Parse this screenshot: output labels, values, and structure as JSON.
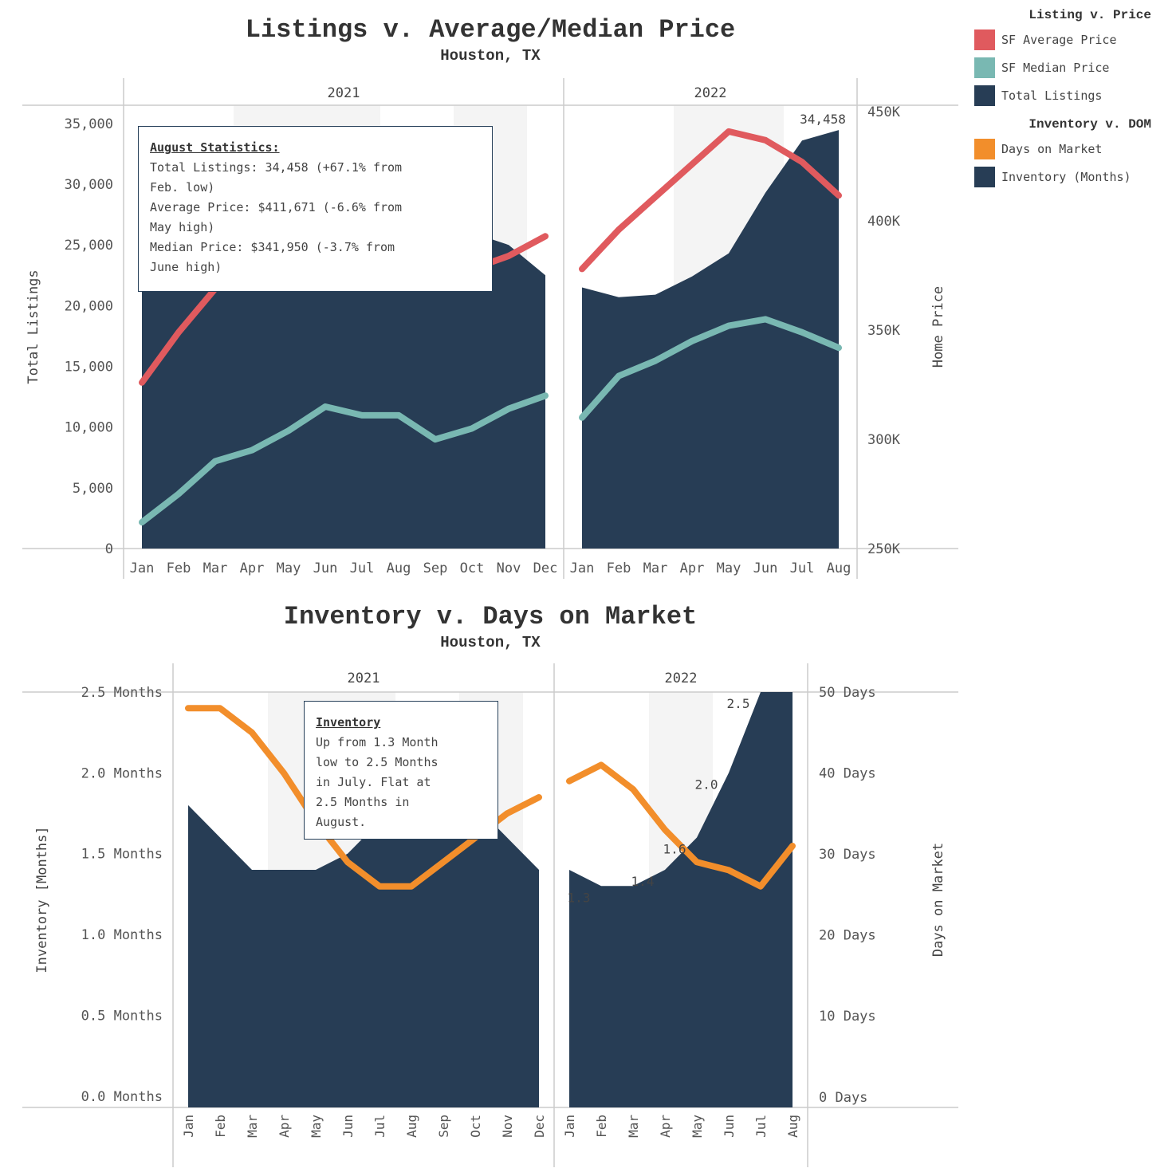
{
  "colors": {
    "avg_price": "#e05a5e",
    "median_price": "#79b8b2",
    "listings": "#273d55",
    "dom": "#f28e2b",
    "shade": "#f4f4f4",
    "axis": "#cccccc"
  },
  "legend": {
    "groups": [
      {
        "title": "Listing v. Price",
        "items": [
          {
            "label": "SF Average Price",
            "color": "#e05a5e"
          },
          {
            "label": "SF Median Price",
            "color": "#79b8b2"
          },
          {
            "label": "Total Listings",
            "color": "#273d55"
          }
        ]
      },
      {
        "title": "Inventory v. DOM",
        "items": [
          {
            "label": "Days on Market",
            "color": "#f28e2b"
          },
          {
            "label": "Inventory (Months)",
            "color": "#273d55"
          }
        ]
      }
    ]
  },
  "annotations": {
    "top": {
      "title": "August Statistics:",
      "lines": [
        "Total Listings: 34,458 (+67.1% from",
        "Feb. low)",
        "Average Price: $411,671 (-6.6% from",
        "May high)",
        "Median Price: $341,950 (-3.7% from",
        "June high)"
      ]
    },
    "bottom": {
      "title": "Inventory",
      "lines": [
        "Up from 1.3 Month",
        "low to 2.5 Months",
        "in July. Flat at",
        "2.5 Months in",
        "August."
      ]
    }
  },
  "chart_data": [
    {
      "type": "area",
      "title": "Listings v. Average/Median Price",
      "subtitle": "Houston, TX",
      "panels": [
        "2021",
        "2022"
      ],
      "categories": [
        [
          "Jan",
          "Feb",
          "Mar",
          "Apr",
          "May",
          "Jun",
          "Jul",
          "Aug",
          "Sep",
          "Oct",
          "Nov",
          "Dec"
        ],
        [
          "Jan",
          "Feb",
          "Mar",
          "Apr",
          "May",
          "Jun",
          "Jul",
          "Aug"
        ]
      ],
      "ylabel": "Total Listings",
      "y2label": "Home Price",
      "ylim": [
        0,
        36500
      ],
      "y2lim": [
        250000,
        453000
      ],
      "yticks": [
        0,
        5000,
        10000,
        15000,
        20000,
        25000,
        30000,
        35000
      ],
      "yticklabels": [
        "0",
        "5,000",
        "10,000",
        "15,000",
        "20,000",
        "25,000",
        "30,000",
        "35,000"
      ],
      "y2ticks": [
        250000,
        300000,
        350000,
        400000,
        450000
      ],
      "y2ticklabels": [
        "250K",
        "300K",
        "350K",
        "400K",
        "450K"
      ],
      "series": [
        {
          "name": "Total Listings",
          "axis": "left",
          "kind": "area",
          "values": [
            [
              22000,
              22100,
              22300,
              22500,
              22700,
              23000,
              23500,
              24000,
              24800,
              26000,
              25000,
              22500
            ],
            [
              21500,
              20700,
              20900,
              22400,
              24300,
              29300,
              33600,
              34458
            ]
          ]
        },
        {
          "name": "SF Average Price",
          "axis": "right",
          "kind": "line",
          "values": [
            [
              326000,
              349000,
              369000,
              378000,
              382000,
              383000,
              380000,
              377000,
              374000,
              378000,
              384000,
              393000
            ],
            [
              378000,
              396000,
              411000,
              426000,
              441000,
              437000,
              427000,
              411671
            ]
          ]
        },
        {
          "name": "SF Median Price",
          "axis": "right",
          "kind": "line",
          "values": [
            [
              262000,
              275000,
              290000,
              295000,
              304000,
              315000,
              311000,
              311000,
              300000,
              305000,
              314000,
              320000
            ],
            [
              310000,
              329000,
              336000,
              345000,
              352000,
              355000,
              349000,
              341950
            ]
          ]
        }
      ],
      "data_labels": [
        {
          "panel": 1,
          "index": 7,
          "text": "34,458"
        }
      ],
      "shaded_columns": [
        [
          3,
          4,
          5,
          6,
          7
        ],
        [
          9,
          10,
          11
        ],
        [
          3,
          4,
          5,
          6
        ]
      ]
    },
    {
      "type": "area",
      "title": "Inventory v. Days on Market",
      "subtitle": "Houston, TX",
      "panels": [
        "2021",
        "2022"
      ],
      "categories": [
        [
          "Jan",
          "Feb",
          "Mar",
          "Apr",
          "May",
          "Jun",
          "Jul",
          "Aug",
          "Sep",
          "Oct",
          "Nov",
          "Dec"
        ],
        [
          "Jan",
          "Feb",
          "Mar",
          "Apr",
          "May",
          "Jun",
          "Jul",
          "Aug"
        ]
      ],
      "ylabel": "Inventory [Months]",
      "y2label": "Days on Market",
      "ylim": [
        -0.07,
        2.5
      ],
      "y2lim": [
        -1.3,
        50
      ],
      "yticks": [
        0,
        0.5,
        1.0,
        1.5,
        2.0,
        2.5
      ],
      "yticklabels": [
        "0.0 Months",
        "0.5 Months",
        "1.0 Months",
        "1.5 Months",
        "2.0 Months",
        "2.5 Months"
      ],
      "y2ticks": [
        0,
        10,
        20,
        30,
        40,
        50
      ],
      "y2ticklabels": [
        "0 Days",
        "10 Days",
        "20 Days",
        "30 Days",
        "40 Days",
        "50 Days"
      ],
      "series": [
        {
          "name": "Inventory (Months)",
          "axis": "left",
          "kind": "area",
          "values": [
            [
              1.8,
              1.6,
              1.4,
              1.4,
              1.4,
              1.5,
              1.7,
              1.8,
              1.9,
              1.8,
              1.6,
              1.4
            ],
            [
              1.4,
              1.3,
              1.3,
              1.4,
              1.6,
              2.0,
              2.5,
              2.5
            ]
          ]
        },
        {
          "name": "Days on Market",
          "axis": "right",
          "kind": "line",
          "values": [
            [
              48,
              48,
              45,
              40,
              34,
              29,
              26,
              26,
              29,
              32,
              35,
              37
            ],
            [
              39,
              41,
              38,
              33,
              29,
              28,
              26,
              31
            ]
          ]
        }
      ],
      "data_labels": [
        {
          "panel": 1,
          "index": 1,
          "text": "1.3"
        },
        {
          "panel": 1,
          "index": 3,
          "text": "1.4"
        },
        {
          "panel": 1,
          "index": 4,
          "text": "1.6"
        },
        {
          "panel": 1,
          "index": 5,
          "text": "2.0"
        },
        {
          "panel": 1,
          "index": 6,
          "text": "2.5"
        }
      ],
      "shaded_columns": [
        [
          3,
          4,
          5,
          6,
          7
        ],
        [
          9,
          10,
          11
        ],
        [
          3,
          4,
          5
        ]
      ]
    }
  ]
}
